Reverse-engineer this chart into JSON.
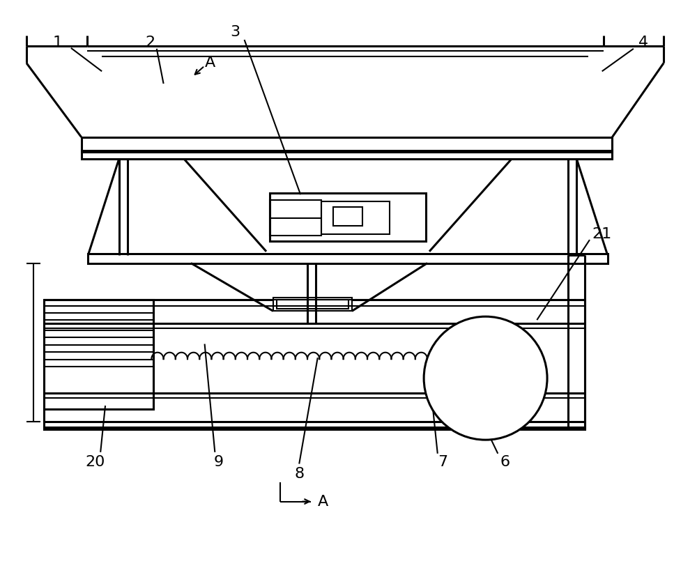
{
  "bg_color": "#ffffff",
  "line_color": "#000000",
  "fig_width": 10.0,
  "fig_height": 8.15,
  "lw": 1.5,
  "lw2": 2.2,
  "fs": 15
}
